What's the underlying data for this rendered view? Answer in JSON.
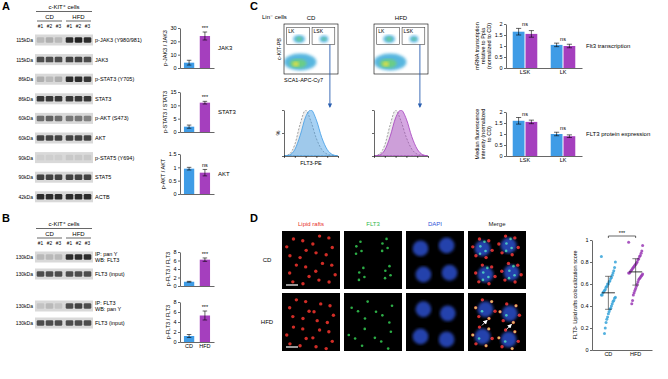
{
  "chart_data": [
    {
      "type": "bar",
      "title": "JAK3",
      "y_label": "p-JAK3 / JAK3",
      "categories": [
        null,
        null
      ],
      "values": [
        4,
        24
      ],
      "errors": [
        1.8,
        3
      ],
      "colors": [
        "#3f9ce6",
        "#a53fbe"
      ],
      "annotations": [
        null,
        "***"
      ],
      "ylim": [
        0,
        30
      ],
      "yticks": [
        0,
        10,
        20,
        30
      ]
    },
    {
      "type": "bar",
      "title": "STAT3",
      "y_label": "p-STAT3 / STAT3",
      "categories": [
        null,
        null
      ],
      "values": [
        2,
        11
      ],
      "errors": [
        0.6,
        0.5
      ],
      "colors": [
        "#3f9ce6",
        "#a53fbe"
      ],
      "annotations": [
        null,
        "***"
      ],
      "ylim": [
        0,
        15
      ],
      "yticks": [
        0,
        5,
        10,
        15
      ]
    },
    {
      "type": "bar",
      "title": "AKT",
      "y_label": "p-AKT / AKT",
      "categories": [
        null,
        null
      ],
      "values": [
        0.95,
        0.8
      ],
      "errors": [
        0.05,
        0.12
      ],
      "colors": [
        "#3f9ce6",
        "#a53fbe"
      ],
      "annotations": [
        null,
        "ns"
      ],
      "ylim": [
        0,
        1.5
      ],
      "yticks": [
        0,
        0.5,
        1,
        1.5
      ]
    },
    {
      "type": "bar",
      "y_label": "p-FLT3 / FLT3",
      "categories": [
        null,
        null
      ],
      "values": [
        1,
        6.2
      ],
      "errors": [
        0.1,
        0.4
      ],
      "colors": [
        "#3f9ce6",
        "#a53fbe"
      ],
      "annotations": [
        null,
        "***"
      ],
      "ylim": [
        0,
        8
      ],
      "yticks": [
        0,
        2,
        4,
        6,
        8
      ]
    },
    {
      "type": "bar",
      "y_label": "p-FLT3 / FLT3",
      "categories": [
        "CD",
        "HFD"
      ],
      "values": [
        1.2,
        5.3
      ],
      "errors": [
        0.3,
        0.9
      ],
      "colors": [
        "#3f9ce6",
        "#a53fbe"
      ],
      "annotations": [
        null,
        "***"
      ],
      "ylim": [
        0,
        8
      ],
      "yticks": [
        0,
        2,
        4,
        6,
        8
      ]
    },
    {
      "type": "area",
      "x_label": "FLT3-PE",
      "y_label": "%",
      "tick_labels": false,
      "x": [
        0,
        0.5,
        1,
        1.5,
        2,
        2.5,
        3,
        3.5,
        4,
        4.5,
        5
      ],
      "series": [
        {
          "color": "#8c8c8c",
          "line_style": "dashed",
          "values": [
            0,
            4,
            25,
            70,
            100,
            75,
            38,
            14,
            4,
            1,
            0
          ]
        },
        {
          "color": "#3f9ce6",
          "line_style": "solid",
          "values": [
            0,
            2,
            14,
            45,
            85,
            100,
            78,
            40,
            14,
            3,
            0
          ]
        }
      ],
      "xlim": [
        0,
        5
      ],
      "ylim": [
        0,
        100
      ],
      "xticks": [
        0,
        1,
        2,
        3,
        4,
        5
      ],
      "yticks": [
        0,
        50,
        100
      ]
    },
    {
      "type": "area",
      "tick_labels": false,
      "x": [
        0,
        0.5,
        1,
        1.5,
        2,
        2.5,
        3,
        3.5,
        4,
        4.5,
        5
      ],
      "series": [
        {
          "color": "#8c8c8c",
          "line_style": "dashed",
          "values": [
            0,
            4,
            24,
            68,
            100,
            76,
            40,
            15,
            4,
            1,
            0
          ]
        },
        {
          "color": "#a53fbe",
          "line_style": "solid",
          "values": [
            0,
            2,
            13,
            43,
            83,
            100,
            80,
            42,
            15,
            3,
            0
          ]
        }
      ],
      "xlim": [
        0,
        5
      ],
      "ylim": [
        0,
        100
      ],
      "xticks": [
        0,
        1,
        2,
        3,
        4,
        5
      ],
      "yticks": [
        0,
        50,
        100
      ]
    },
    {
      "type": "bar",
      "title": "Flt3 transcription",
      "y_label": "mRNA transcription relative to Ppia (normalized to CD)",
      "categories": [
        "LSK",
        "LK"
      ],
      "series": [
        {
          "color": "#3f9ce6",
          "values": [
            1.65,
            1.05
          ],
          "errors": [
            0.15,
            0.08
          ]
        },
        {
          "color": "#a53fbe",
          "values": [
            1.55,
            1.0
          ],
          "errors": [
            0.15,
            0.08
          ]
        }
      ],
      "annotations": [
        "ns",
        "ns"
      ],
      "ylim": [
        0,
        2
      ],
      "yticks": [
        0,
        0.5,
        1,
        1.5,
        2
      ]
    },
    {
      "type": "bar",
      "title": "FLT3 protein expression",
      "y_label": "Median fluorescence intensity (normalized to CD)",
      "categories": [
        "LSK",
        "LK"
      ],
      "series": [
        {
          "color": "#3f9ce6",
          "values": [
            1.6,
            1.0
          ],
          "errors": [
            0.15,
            0.08
          ]
        },
        {
          "color": "#a53fbe",
          "values": [
            1.55,
            0.9
          ],
          "errors": [
            0.08,
            0.06
          ]
        }
      ],
      "annotations": [
        "ns",
        "ns"
      ],
      "ylim": [
        0,
        2
      ],
      "yticks": [
        0,
        0.5,
        1,
        1.5,
        2
      ]
    },
    {
      "type": "strip",
      "y_label": "FLT3- Lipid rafts colocalization score",
      "categories": [
        "CD",
        "HFD"
      ],
      "colors": [
        "#36a3d9",
        "#9a3ab5"
      ],
      "values": [
        [
          0.85,
          0.8,
          0.75,
          0.72,
          0.7,
          0.68,
          0.66,
          0.65,
          0.63,
          0.62,
          0.6,
          0.6,
          0.58,
          0.57,
          0.55,
          0.54,
          0.53,
          0.52,
          0.5,
          0.5,
          0.48,
          0.47,
          0.45,
          0.44,
          0.42,
          0.4,
          0.38,
          0.37,
          0.35,
          0.33,
          0.3,
          0.28,
          0.25,
          0.2,
          0.15
        ],
        [
          0.98,
          0.95,
          0.9,
          0.88,
          0.86,
          0.85,
          0.83,
          0.82,
          0.8,
          0.79,
          0.78,
          0.77,
          0.76,
          0.75,
          0.74,
          0.73,
          0.72,
          0.71,
          0.7,
          0.7,
          0.69,
          0.68,
          0.67,
          0.66,
          0.65,
          0.64,
          0.62,
          0.6,
          0.58,
          0.56,
          0.54,
          0.52,
          0.5,
          0.45,
          0.42
        ]
      ],
      "means": [
        0.52,
        0.71
      ],
      "errors": [
        0.15,
        0.12
      ],
      "annotations": [
        "***"
      ],
      "ylim": [
        0,
        1
      ],
      "yticks": [
        0,
        0.2,
        0.4,
        0.6,
        0.8,
        1
      ]
    }
  ],
  "figure": {
    "panel_letters": [
      "A",
      "B",
      "C",
      "D"
    ],
    "blots": [
      {
        "header": "c-KIT⁺ cells",
        "groups": [
          "CD",
          "HFD"
        ],
        "lanes": [
          "#1",
          "#2",
          "#3",
          "#1",
          "#2",
          "#3"
        ],
        "rows": [
          {
            "mw": "115kDa",
            "label": "p-JAK3 (Y980/981)",
            "bands": [
              0.15,
              0.2,
              0.15,
              0.85,
              0.9,
              0.85
            ]
          },
          {
            "mw": "115kDa",
            "label": "JAK3",
            "bands": [
              0.7,
              0.7,
              0.7,
              0.75,
              0.75,
              0.7
            ]
          },
          {
            "mw": "86kDa",
            "label": "p-STAT3 (Y705)",
            "bands": [
              0.2,
              0.15,
              0.2,
              0.85,
              0.85,
              0.8
            ]
          },
          {
            "mw": "86kDa",
            "label": "STAT3",
            "bands": [
              0.8,
              0.8,
              0.8,
              0.8,
              0.8,
              0.8
            ]
          },
          {
            "mw": "60kDa",
            "label": "p-AKT (S473)",
            "bands": [
              0.55,
              0.6,
              0.55,
              0.5,
              0.5,
              0.45
            ]
          },
          {
            "mw": "60kDa",
            "label": "AKT",
            "bands": [
              0.75,
              0.75,
              0.75,
              0.75,
              0.75,
              0.75
            ]
          },
          {
            "mw": "90kDa",
            "label": "p-STAT5 (Y694)",
            "bands": [
              0.05,
              0.05,
              0.05,
              0.08,
              0.08,
              0.08
            ]
          },
          {
            "mw": "90kDa",
            "label": "STAT5",
            "bands": [
              0.75,
              0.75,
              0.75,
              0.75,
              0.75,
              0.75
            ]
          },
          {
            "mw": "42kDa",
            "label": "ACTB",
            "bands": [
              0.85,
              0.85,
              0.85,
              0.85,
              0.85,
              0.85
            ]
          }
        ]
      },
      {
        "header": "c-KIT⁺ cells",
        "groups": [
          "CD",
          "HFD"
        ],
        "lanes": [
          "#1",
          "#2",
          "#3",
          "#1",
          "#2",
          "#3"
        ],
        "rows": [
          {
            "mw": "130kDa",
            "label": [
              "IP: pan Y",
              "WB: FLT3"
            ],
            "bands": [
              0.15,
              0.15,
              0.15,
              0.85,
              0.85,
              0.85
            ]
          },
          {
            "mw": "130kDa",
            "label": "FLT3 (input)",
            "bands": [
              0.7,
              0.7,
              0.7,
              0.7,
              0.7,
              0.7
            ]
          },
          {
            "mw": "130kDa",
            "label": [
              "IP: FLT3",
              "WB: pan Y"
            ],
            "bands": [
              0.1,
              0.15,
              0.1,
              0.7,
              0.75,
              0.7
            ]
          },
          {
            "mw": "130kDa",
            "label": "FLT3 (input)",
            "bands": [
              0.7,
              0.7,
              0.7,
              0.7,
              0.7,
              0.7
            ]
          }
        ]
      }
    ],
    "flow": {
      "title": "Lin⁻ cells",
      "x_label": "SCA1-APC-Cy7",
      "y_label": "c-KIT-PB",
      "plots": [
        {
          "title": "CD",
          "gates": [
            "LK",
            "LSK"
          ]
        },
        {
          "title": "HFD",
          "gates": [
            "LK",
            "LSK"
          ]
        }
      ]
    },
    "microscopy": {
      "columns": [
        {
          "label": "Lipid rafts",
          "color": "#e8302a"
        },
        {
          "label": "FLT3",
          "color": "#2fb84a"
        },
        {
          "label": "DAPI",
          "color": "#2f52d8"
        },
        {
          "label": "Merge",
          "color": "#222222"
        }
      ],
      "rows": [
        "CD",
        "HFD"
      ]
    }
  }
}
